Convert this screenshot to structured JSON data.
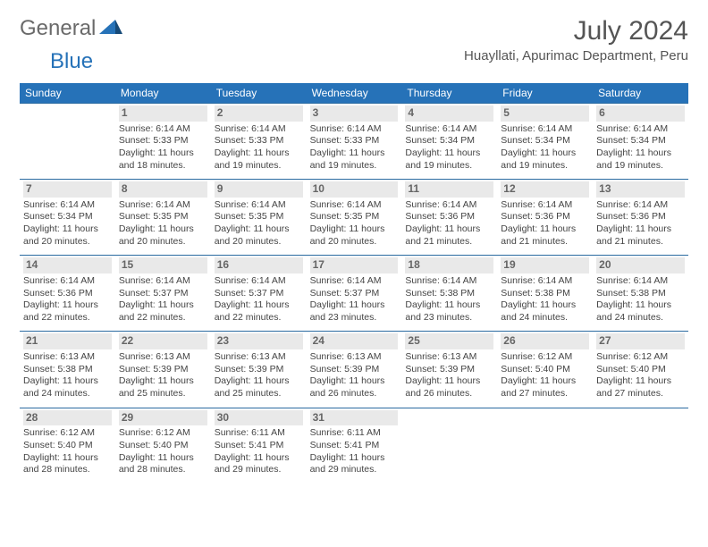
{
  "logo": {
    "text1": "General",
    "text2": "Blue"
  },
  "title": "July 2024",
  "location": "Huayllati, Apurimac Department, Peru",
  "colors": {
    "header_bg": "#2672b8",
    "header_text": "#ffffff",
    "daynum_bg": "#e9e9e9",
    "daynum_text": "#666666",
    "divider": "#2a6aa0",
    "logo_general": "#6a6a6a",
    "logo_blue": "#2672b8"
  },
  "weekdays": [
    "Sunday",
    "Monday",
    "Tuesday",
    "Wednesday",
    "Thursday",
    "Friday",
    "Saturday"
  ],
  "grid": [
    [
      {
        "blank": true
      },
      {
        "n": "1",
        "sr": "6:14 AM",
        "ss": "5:33 PM",
        "dl": "11 hours and 18 minutes."
      },
      {
        "n": "2",
        "sr": "6:14 AM",
        "ss": "5:33 PM",
        "dl": "11 hours and 19 minutes."
      },
      {
        "n": "3",
        "sr": "6:14 AM",
        "ss": "5:33 PM",
        "dl": "11 hours and 19 minutes."
      },
      {
        "n": "4",
        "sr": "6:14 AM",
        "ss": "5:34 PM",
        "dl": "11 hours and 19 minutes."
      },
      {
        "n": "5",
        "sr": "6:14 AM",
        "ss": "5:34 PM",
        "dl": "11 hours and 19 minutes."
      },
      {
        "n": "6",
        "sr": "6:14 AM",
        "ss": "5:34 PM",
        "dl": "11 hours and 19 minutes."
      }
    ],
    [
      {
        "n": "7",
        "sr": "6:14 AM",
        "ss": "5:34 PM",
        "dl": "11 hours and 20 minutes."
      },
      {
        "n": "8",
        "sr": "6:14 AM",
        "ss": "5:35 PM",
        "dl": "11 hours and 20 minutes."
      },
      {
        "n": "9",
        "sr": "6:14 AM",
        "ss": "5:35 PM",
        "dl": "11 hours and 20 minutes."
      },
      {
        "n": "10",
        "sr": "6:14 AM",
        "ss": "5:35 PM",
        "dl": "11 hours and 20 minutes."
      },
      {
        "n": "11",
        "sr": "6:14 AM",
        "ss": "5:36 PM",
        "dl": "11 hours and 21 minutes."
      },
      {
        "n": "12",
        "sr": "6:14 AM",
        "ss": "5:36 PM",
        "dl": "11 hours and 21 minutes."
      },
      {
        "n": "13",
        "sr": "6:14 AM",
        "ss": "5:36 PM",
        "dl": "11 hours and 21 minutes."
      }
    ],
    [
      {
        "n": "14",
        "sr": "6:14 AM",
        "ss": "5:36 PM",
        "dl": "11 hours and 22 minutes."
      },
      {
        "n": "15",
        "sr": "6:14 AM",
        "ss": "5:37 PM",
        "dl": "11 hours and 22 minutes."
      },
      {
        "n": "16",
        "sr": "6:14 AM",
        "ss": "5:37 PM",
        "dl": "11 hours and 22 minutes."
      },
      {
        "n": "17",
        "sr": "6:14 AM",
        "ss": "5:37 PM",
        "dl": "11 hours and 23 minutes."
      },
      {
        "n": "18",
        "sr": "6:14 AM",
        "ss": "5:38 PM",
        "dl": "11 hours and 23 minutes."
      },
      {
        "n": "19",
        "sr": "6:14 AM",
        "ss": "5:38 PM",
        "dl": "11 hours and 24 minutes."
      },
      {
        "n": "20",
        "sr": "6:14 AM",
        "ss": "5:38 PM",
        "dl": "11 hours and 24 minutes."
      }
    ],
    [
      {
        "n": "21",
        "sr": "6:13 AM",
        "ss": "5:38 PM",
        "dl": "11 hours and 24 minutes."
      },
      {
        "n": "22",
        "sr": "6:13 AM",
        "ss": "5:39 PM",
        "dl": "11 hours and 25 minutes."
      },
      {
        "n": "23",
        "sr": "6:13 AM",
        "ss": "5:39 PM",
        "dl": "11 hours and 25 minutes."
      },
      {
        "n": "24",
        "sr": "6:13 AM",
        "ss": "5:39 PM",
        "dl": "11 hours and 26 minutes."
      },
      {
        "n": "25",
        "sr": "6:13 AM",
        "ss": "5:39 PM",
        "dl": "11 hours and 26 minutes."
      },
      {
        "n": "26",
        "sr": "6:12 AM",
        "ss": "5:40 PM",
        "dl": "11 hours and 27 minutes."
      },
      {
        "n": "27",
        "sr": "6:12 AM",
        "ss": "5:40 PM",
        "dl": "11 hours and 27 minutes."
      }
    ],
    [
      {
        "n": "28",
        "sr": "6:12 AM",
        "ss": "5:40 PM",
        "dl": "11 hours and 28 minutes."
      },
      {
        "n": "29",
        "sr": "6:12 AM",
        "ss": "5:40 PM",
        "dl": "11 hours and 28 minutes."
      },
      {
        "n": "30",
        "sr": "6:11 AM",
        "ss": "5:41 PM",
        "dl": "11 hours and 29 minutes."
      },
      {
        "n": "31",
        "sr": "6:11 AM",
        "ss": "5:41 PM",
        "dl": "11 hours and 29 minutes."
      },
      {
        "blank": true
      },
      {
        "blank": true
      },
      {
        "blank": true
      }
    ]
  ]
}
